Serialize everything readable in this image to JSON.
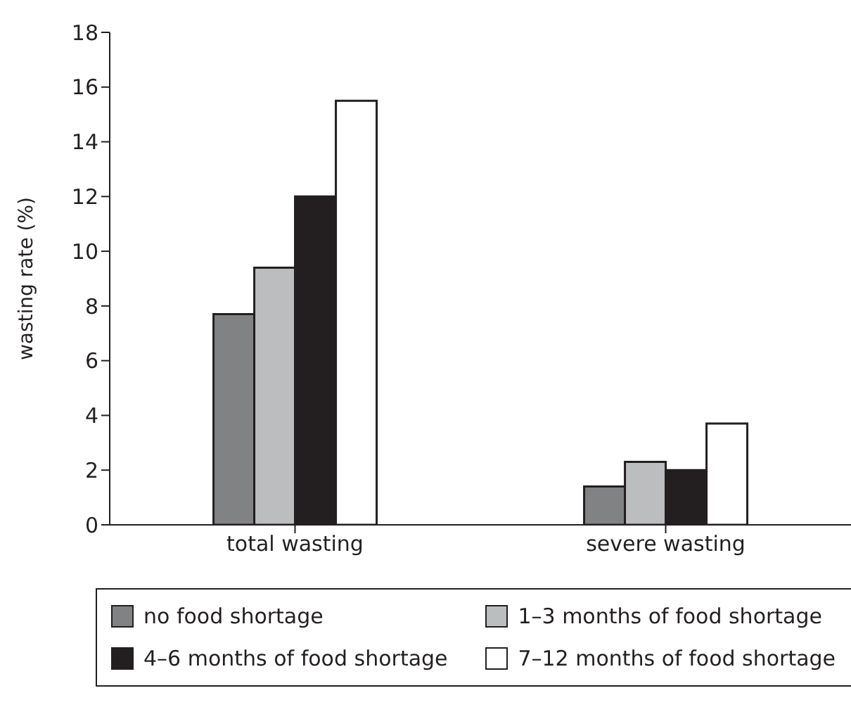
{
  "chart_data": {
    "type": "bar",
    "ylabel": "wasting rate (%)",
    "categories": [
      "total wasting",
      "severe wasting"
    ],
    "series": [
      {
        "name": "no food shortage",
        "color": "#818284",
        "values": [
          7.7,
          1.4
        ]
      },
      {
        "name": "1–3 months of food shortage",
        "color": "#bcbdbf",
        "values": [
          9.4,
          2.3
        ]
      },
      {
        "name": "4–6 months of food shortage",
        "color": "#231f20",
        "values": [
          12.0,
          2.0
        ]
      },
      {
        "name": "7–12 months of food shortage",
        "color": "#ffffff",
        "values": [
          15.5,
          3.7
        ]
      }
    ],
    "ylim": [
      0,
      18
    ],
    "yticks": [
      0,
      2,
      4,
      6,
      8,
      10,
      12,
      14,
      16,
      18
    ],
    "grid": false,
    "legend": "bottom"
  }
}
